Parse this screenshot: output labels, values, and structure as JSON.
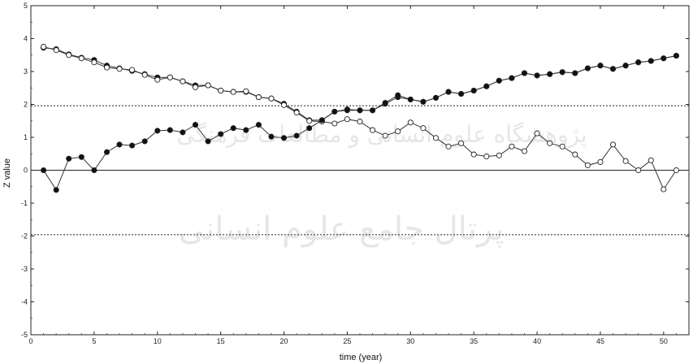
{
  "chart_data": {
    "type": "line",
    "xlabel": "time (year)",
    "ylabel": "Z value",
    "xlim": [
      0,
      52
    ],
    "ylim": [
      -5,
      5
    ],
    "x_ticks": [
      0,
      5,
      10,
      15,
      20,
      25,
      30,
      35,
      40,
      45,
      50
    ],
    "y_ticks": [
      -5,
      -4,
      -3,
      -2,
      -1,
      0,
      1,
      2,
      3,
      4,
      5
    ],
    "reference_lines": [
      {
        "y": 1.96,
        "style": "dotted"
      },
      {
        "y": -1.96,
        "style": "dotted"
      },
      {
        "y": 0,
        "style": "solid"
      }
    ],
    "grid": false,
    "watermark_lines": [
      "پژوهشگاه علوم انسانی و مطالعات فرهنگی",
      "پرتال جامع علوم انسانی"
    ],
    "colors": {
      "series_line": "#333333",
      "filled_marker": "#111111",
      "open_marker": "#ffffff",
      "reference": "#222222"
    },
    "x": [
      1,
      2,
      3,
      4,
      5,
      6,
      7,
      8,
      9,
      10,
      11,
      12,
      13,
      14,
      15,
      16,
      17,
      18,
      19,
      20,
      21,
      22,
      23,
      24,
      25,
      26,
      27,
      28,
      29,
      30,
      31,
      32,
      33,
      34,
      35,
      36,
      37,
      38,
      39,
      40,
      41,
      42,
      43,
      44,
      45,
      46,
      47,
      48,
      49,
      50,
      51
    ],
    "series": [
      {
        "marker": "filled",
        "values": [
          3.72,
          3.68,
          3.52,
          3.42,
          3.35,
          3.18,
          3.1,
          3.02,
          2.92,
          2.82,
          2.82,
          2.7,
          2.58,
          2.58,
          2.42,
          2.38,
          2.38,
          2.22,
          2.18,
          2.02,
          1.78,
          1.52,
          1.52,
          1.78,
          1.85,
          1.82,
          1.82,
          2.02,
          2.22,
          2.15,
          2.08,
          2.2,
          2.38,
          2.32,
          2.42,
          2.55,
          2.72,
          2.8,
          2.95,
          2.88,
          2.92,
          2.98,
          2.95,
          3.1,
          3.18,
          3.08,
          3.18,
          3.28,
          3.32,
          3.4,
          3.48
        ]
      },
      {
        "marker": "open",
        "values": [
          3.75,
          3.65,
          3.5,
          3.4,
          3.28,
          3.12,
          3.08,
          3.05,
          2.9,
          2.75,
          2.82,
          2.7,
          2.52,
          2.58,
          2.42,
          2.38,
          2.4,
          2.22,
          2.18,
          1.98,
          1.75,
          1.5,
          1.48,
          1.42,
          1.55,
          1.48,
          1.22,
          1.05,
          1.18,
          1.45,
          1.28,
          0.98,
          0.72,
          0.82,
          0.48,
          0.42,
          0.45,
          0.72,
          0.58,
          1.12,
          0.82,
          0.72,
          0.48,
          0.15,
          0.25,
          0.78,
          0.28,
          0.0,
          0.3,
          -0.58,
          0.0
        ]
      },
      {
        "marker": "filled",
        "values": [
          0.0,
          -0.6,
          0.35,
          0.4,
          0.0,
          0.55,
          0.78,
          0.75,
          0.88,
          1.2,
          1.22,
          1.15,
          1.38,
          0.88,
          1.1,
          1.28,
          1.22,
          1.38,
          1.02,
          0.98,
          1.05,
          1.28,
          1.52,
          1.78,
          1.82,
          1.82,
          1.82,
          2.05,
          2.28,
          2.15,
          2.08,
          2.2,
          2.38,
          2.32,
          2.42,
          2.55,
          2.72,
          2.8,
          2.95,
          2.88,
          2.92,
          2.98,
          2.95,
          3.1,
          3.18,
          3.08,
          3.18,
          3.28,
          3.32,
          3.4,
          3.48
        ]
      }
    ]
  }
}
